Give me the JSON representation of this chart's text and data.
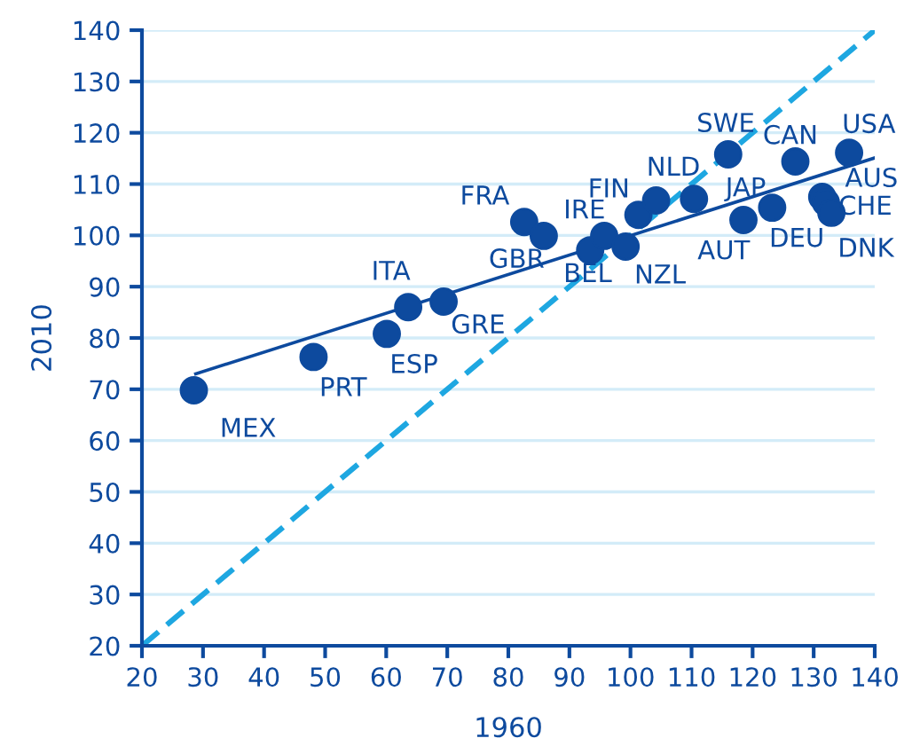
{
  "chart_data": {
    "type": "scatter",
    "xlabel": "1960",
    "ylabel": "2010",
    "xlim": [
      20,
      140
    ],
    "ylim": [
      20,
      140
    ],
    "xticks": [
      20,
      30,
      40,
      50,
      60,
      70,
      80,
      90,
      100,
      110,
      120,
      130,
      140
    ],
    "yticks": [
      20,
      30,
      40,
      50,
      60,
      70,
      80,
      90,
      100,
      110,
      120,
      130,
      140
    ],
    "grid": "y",
    "marker": "circle",
    "series": [
      {
        "color": "#0d4a9e",
        "x": [
          28.5,
          48.1,
          60.1,
          63.6,
          69.4,
          82.6,
          85.8,
          93.4,
          95.7,
          99.2,
          101.3,
          104.2,
          110.4,
          116.0,
          118.5,
          123.2,
          127.0,
          135.8,
          131.4,
          132.0,
          132.9
        ],
        "values": [
          69.8,
          76.3,
          80.8,
          86.0,
          87.1,
          102.6,
          99.9,
          97.1,
          99.9,
          97.8,
          104.0,
          106.8,
          107.1,
          115.8,
          103.0,
          105.4,
          114.4,
          116.1,
          107.5,
          106.4,
          104.4
        ]
      },
      {
        "type": "line",
        "marker": "none",
        "color": "#0d4a9e",
        "line_style": "solid",
        "x": [
          28.8,
          140
        ],
        "values": [
          73.0,
          115.1
        ]
      },
      {
        "type": "line",
        "marker": "none",
        "color": "#1ea7e1",
        "line_style": "dashed",
        "x": [
          20,
          140
        ],
        "values": [
          20,
          140
        ]
      }
    ],
    "annotations": [
      {
        "text": "MEX",
        "x": 28.5,
        "y": 69.8
      },
      {
        "text": "PRT",
        "x": 48.1,
        "y": 76.3
      },
      {
        "text": "ESP",
        "x": 60.1,
        "y": 80.8
      },
      {
        "text": "ITA",
        "x": 63.6,
        "y": 86.0
      },
      {
        "text": "GRE",
        "x": 69.4,
        "y": 87.1
      },
      {
        "text": "FRA",
        "x": 82.6,
        "y": 102.6
      },
      {
        "text": "GBR",
        "x": 85.8,
        "y": 99.9
      },
      {
        "text": "BEL",
        "x": 93.4,
        "y": 97.1
      },
      {
        "text": "IRE",
        "x": 95.7,
        "y": 99.9
      },
      {
        "text": "NZL",
        "x": 99.2,
        "y": 97.8
      },
      {
        "text": "FIN",
        "x": 101.3,
        "y": 104.0
      },
      {
        "text": "NLD",
        "x": 104.2,
        "y": 106.8
      },
      {
        "text": "JAP",
        "x": 110.4,
        "y": 107.1
      },
      {
        "text": "SWE",
        "x": 116.0,
        "y": 115.8
      },
      {
        "text": "AUT",
        "x": 118.5,
        "y": 103.0
      },
      {
        "text": "DEU",
        "x": 123.2,
        "y": 105.4
      },
      {
        "text": "CAN",
        "x": 127.0,
        "y": 114.4
      },
      {
        "text": "USA",
        "x": 135.8,
        "y": 116.1
      },
      {
        "text": "AUS",
        "x": 131.4,
        "y": 107.5
      },
      {
        "text": "CHE",
        "x": 132.0,
        "y": 106.4
      },
      {
        "text": "DNK",
        "x": 132.9,
        "y": 104.4
      }
    ]
  }
}
